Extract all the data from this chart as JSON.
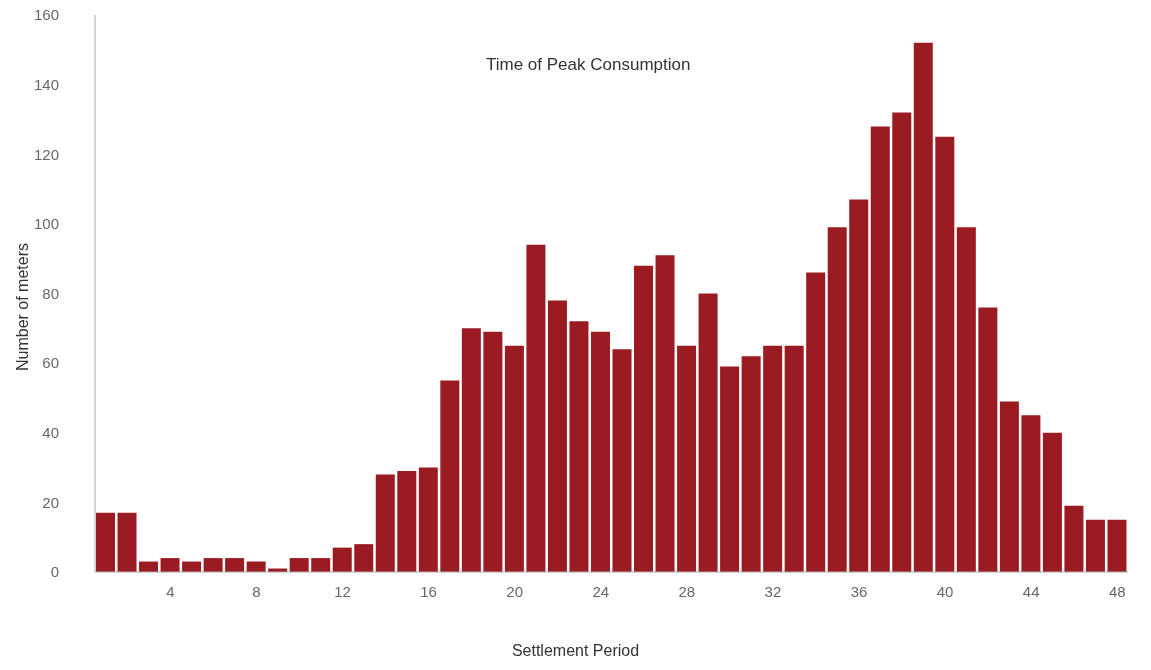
{
  "chart_data": {
    "type": "bar",
    "title": "Time of Peak Consumption",
    "xlabel": "Settlement Period",
    "ylabel": "Number of meters",
    "x": [
      1,
      2,
      3,
      4,
      5,
      6,
      7,
      8,
      9,
      10,
      11,
      12,
      13,
      14,
      15,
      16,
      17,
      18,
      19,
      20,
      21,
      22,
      23,
      24,
      25,
      26,
      27,
      28,
      29,
      30,
      31,
      32,
      33,
      34,
      35,
      36,
      37,
      38,
      39,
      40,
      41,
      42,
      43,
      44,
      45,
      46,
      47,
      48
    ],
    "values": [
      17,
      17,
      3,
      4,
      3,
      4,
      4,
      3,
      1,
      4,
      4,
      7,
      8,
      28,
      29,
      30,
      55,
      70,
      69,
      65,
      94,
      78,
      72,
      69,
      64,
      88,
      91,
      65,
      80,
      59,
      62,
      65,
      65,
      86,
      99,
      107,
      128,
      132,
      152,
      125,
      99,
      76,
      49,
      45,
      40,
      19,
      15,
      15
    ],
    "color": "#9b1b22",
    "xlim": [
      0.5,
      48.5
    ],
    "xticks": [
      4,
      8,
      12,
      16,
      20,
      24,
      28,
      32,
      36,
      40,
      44,
      48
    ],
    "ylim": [
      0,
      160
    ],
    "yticks": [
      0,
      20,
      40,
      60,
      80,
      100,
      120,
      140,
      160
    ],
    "grid": false,
    "legend": false
  }
}
